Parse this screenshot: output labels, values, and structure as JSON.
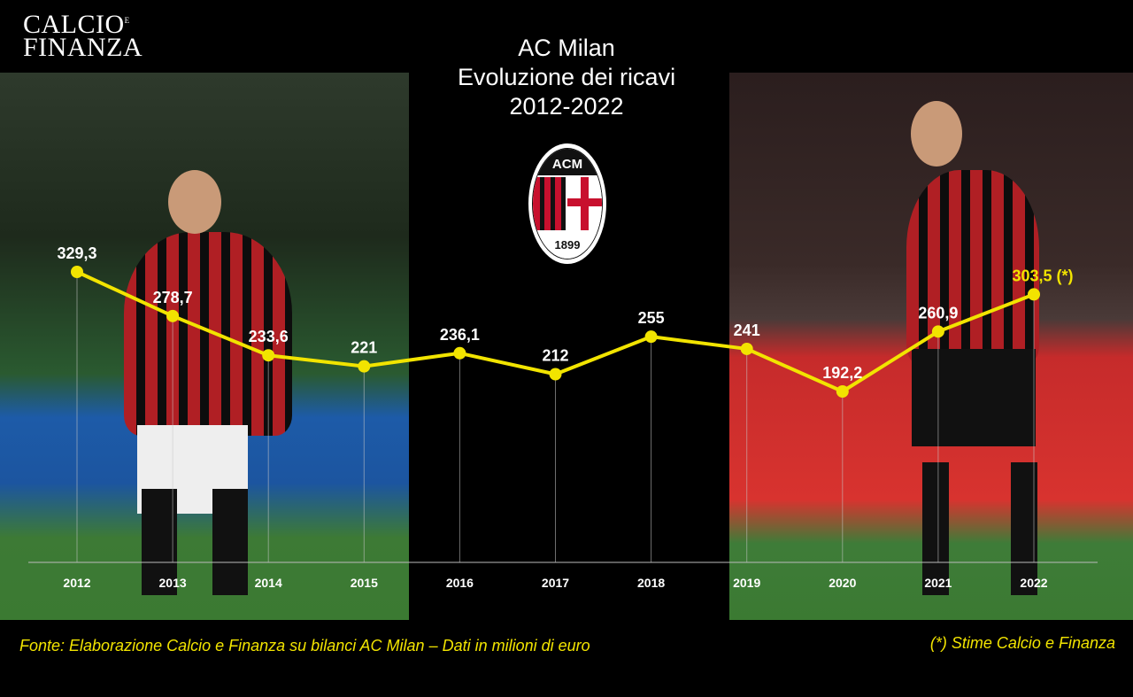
{
  "brand": {
    "line1": "CALCIO",
    "line1_small": "E",
    "line2": "FINANZA"
  },
  "title": {
    "line1": "AC Milan",
    "line2": "Evoluzione dei ricavi",
    "line3": "2012-2022"
  },
  "crest": {
    "top_text": "ACM",
    "year": "1899"
  },
  "colors": {
    "line": "#f2e400",
    "label": "#ffffff",
    "highlight_label": "#f2e400",
    "background": "#000000",
    "axis": "#bbbbbb"
  },
  "chart_data": {
    "type": "line",
    "title": "AC Milan Evoluzione dei ricavi 2012-2022",
    "xlabel": "",
    "ylabel": "",
    "categories": [
      "2012",
      "2013",
      "2014",
      "2015",
      "2016",
      "2017",
      "2018",
      "2019",
      "2020",
      "2021",
      "2022"
    ],
    "values": [
      329.3,
      278.7,
      233.6,
      221,
      236.1,
      212,
      255,
      241,
      192.2,
      260.9,
      303.5
    ],
    "labels": [
      "329,3",
      "278,7",
      "233,6",
      "221",
      "236,1",
      "212",
      "255",
      "241",
      "192,2",
      "260,9",
      "303,5 (*)"
    ],
    "highlight_index": 10,
    "unit": "milioni di euro",
    "grid": false
  },
  "footer": {
    "source": "Fonte: Elaborazione Calcio e Finanza su bilanci AC Milan – Dati in milioni di euro",
    "note": "(*) Stime Calcio e Finanza"
  }
}
